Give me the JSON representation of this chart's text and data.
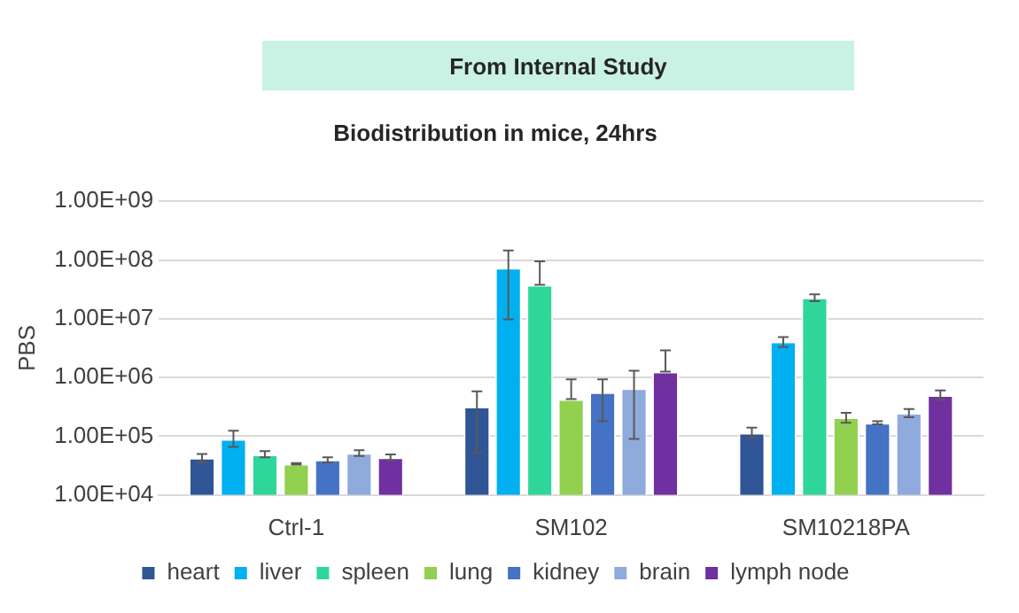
{
  "chart_data": {
    "type": "bar",
    "subtitle": "From Internal Study",
    "title": "Biodistribution in mice, 24hrs",
    "ylabel": "PBS",
    "categories": [
      "Ctrl-1",
      "SM102",
      "SM10218PA"
    ],
    "series": [
      {
        "name": "heart",
        "color": "#2f5597",
        "values": [
          43000,
          320000,
          115000
        ],
        "errors": [
          [
            36000,
            50000
          ],
          [
            53000,
            580000
          ],
          [
            93000,
            140000
          ]
        ]
      },
      {
        "name": "liver",
        "color": "#00b0f0",
        "values": [
          90000,
          74000000,
          4100000
        ],
        "errors": [
          [
            66000,
            124000
          ],
          [
            9800000,
            145000000
          ],
          [
            3300000,
            4900000
          ]
        ]
      },
      {
        "name": "spleen",
        "color": "#2fd69a",
        "values": [
          49000,
          38000000,
          23000000
        ],
        "errors": [
          [
            44000,
            56000
          ],
          [
            38000000,
            95000000
          ],
          [
            20000000,
            26000000
          ]
        ]
      },
      {
        "name": "lung",
        "color": "#92d050",
        "values": [
          34000,
          430000,
          210000
        ],
        "errors": [
          [
            33000,
            35000
          ],
          [
            430000,
            930000
          ],
          [
            170000,
            250000
          ]
        ]
      },
      {
        "name": "kidney",
        "color": "#4472c4",
        "values": [
          40000,
          560000,
          170000
        ],
        "errors": [
          [
            36000,
            44000
          ],
          [
            180000,
            930000
          ],
          [
            160000,
            180000
          ]
        ]
      },
      {
        "name": "brain",
        "color": "#8faadc",
        "values": [
          52000,
          660000,
          250000
        ],
        "errors": [
          [
            46000,
            58000
          ],
          [
            90000,
            1300000
          ],
          [
            210000,
            290000
          ]
        ]
      },
      {
        "name": "lymph node",
        "color": "#7030a0",
        "values": [
          44000,
          1260000,
          500000
        ],
        "errors": [
          [
            39000,
            49000
          ],
          [
            1260000,
            2900000
          ],
          [
            420000,
            600000
          ]
        ]
      }
    ],
    "log": true,
    "ylim": [
      10000,
      1000000000
    ],
    "yticks": [
      {
        "value": 10000,
        "label": "1.00E+04"
      },
      {
        "value": 100000,
        "label": "1.00E+05"
      },
      {
        "value": 1000000,
        "label": "1.00E+06"
      },
      {
        "value": 10000000,
        "label": "1.00E+07"
      },
      {
        "value": 100000000,
        "label": "1.00E+08"
      },
      {
        "value": 1000000000,
        "label": "1.00E+09"
      }
    ],
    "grid": "y",
    "legend": "bottom"
  }
}
